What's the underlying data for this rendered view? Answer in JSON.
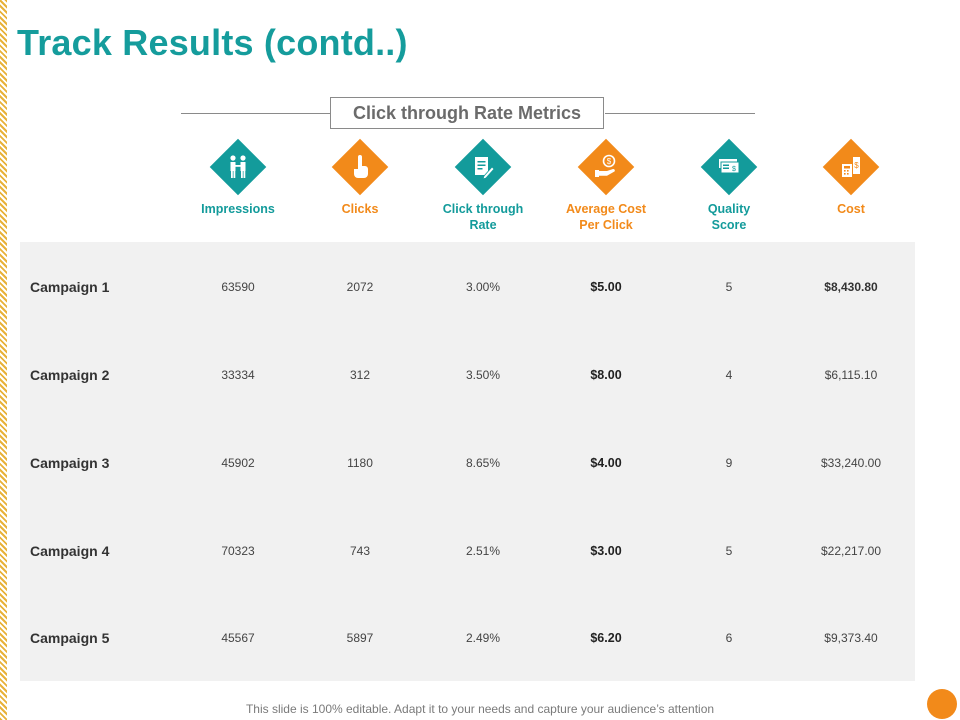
{
  "slide": {
    "title": "Track Results (contd..)",
    "section_header": "Click through Rate Metrics",
    "footer": "This slide is 100% editable. Adapt it to your needs and capture your audience’s attention"
  },
  "colors": {
    "teal": "#139b9b",
    "orange": "#f28a1a",
    "panel": "#f1f1f1"
  },
  "metrics": [
    {
      "label_lines": [
        "Impressions",
        ""
      ],
      "icon": "people-handshake-icon",
      "color": "teal"
    },
    {
      "label_lines": [
        "Clicks",
        ""
      ],
      "icon": "hand-click-icon",
      "color": "orange"
    },
    {
      "label_lines": [
        "Click through",
        "Rate"
      ],
      "icon": "document-edit-icon",
      "color": "teal"
    },
    {
      "label_lines": [
        "Average Cost",
        "Per Click"
      ],
      "icon": "hand-coin-icon",
      "color": "orange"
    },
    {
      "label_lines": [
        "Quality",
        "Score"
      ],
      "icon": "money-cards-icon",
      "color": "teal"
    },
    {
      "label_lines": [
        "Cost",
        ""
      ],
      "icon": "calculator-dollar-icon",
      "color": "orange"
    }
  ],
  "table": {
    "rows": [
      {
        "name": "Campaign 1",
        "cells": [
          "63590",
          "2072",
          "3.00%",
          "$5.00",
          "5",
          "$8,430.80"
        ]
      },
      {
        "name": "Campaign 2",
        "cells": [
          "33334",
          "312",
          "3.50%",
          "$8.00",
          "4",
          "$6,115.10"
        ]
      },
      {
        "name": "Campaign 3",
        "cells": [
          "45902",
          "1180",
          "8.65%",
          "$4.00",
          "9",
          "$33,240.00"
        ]
      },
      {
        "name": "Campaign 4",
        "cells": [
          "70323",
          "743",
          "2.51%",
          "$3.00",
          "5",
          "$22,217.00"
        ]
      },
      {
        "name": "Campaign 5",
        "cells": [
          "45567",
          "5897",
          "2.49%",
          "$6.20",
          "6",
          "$9,373.40"
        ]
      }
    ]
  }
}
